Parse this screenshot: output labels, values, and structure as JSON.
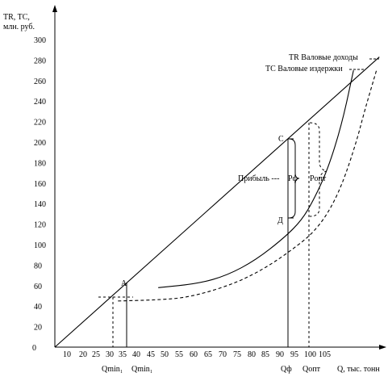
{
  "chart_data": {
    "type": "line",
    "title": "",
    "y_axis_label": [
      "TR, TC,",
      "млн. руб."
    ],
    "x_axis_label": "Q, тыс. тонн",
    "x_ticks": [
      "10",
      "20",
      "25",
      "30",
      "35",
      "40",
      "45",
      "50",
      "55",
      "60",
      "65",
      "70",
      "75",
      "80",
      "85",
      "90",
      "95",
      "100",
      "105"
    ],
    "y_ticks": [
      0,
      20,
      40,
      60,
      80,
      100,
      120,
      140,
      160,
      180,
      200,
      220,
      240,
      260,
      280,
      300
    ],
    "ylim": [
      0,
      300
    ],
    "xlim": [
      0,
      113
    ],
    "series": [
      {
        "name": "TR Валовые доходы",
        "style": "solid",
        "points": [
          [
            0,
            0
          ],
          [
            113,
            283
          ]
        ]
      },
      {
        "name": "TC Валовые издержки",
        "style": "solid",
        "points": [
          [
            36,
            58
          ],
          [
            50,
            62
          ],
          [
            60,
            70
          ],
          [
            70,
            85
          ],
          [
            80,
            107
          ],
          [
            86,
            124
          ],
          [
            90,
            143
          ],
          [
            95,
            173
          ],
          [
            100,
            218
          ],
          [
            104,
            270
          ]
        ]
      },
      {
        "name": "",
        "style": "dashed",
        "points": [
          [
            22,
            45
          ],
          [
            35,
            46
          ],
          [
            45,
            48
          ],
          [
            55,
            55
          ],
          [
            65,
            65
          ],
          [
            75,
            80
          ],
          [
            85,
            100
          ],
          [
            90,
            112
          ],
          [
            95,
            130
          ],
          [
            100,
            158
          ],
          [
            105,
            200
          ],
          [
            108,
            232
          ],
          [
            112,
            270
          ]
        ]
      }
    ],
    "point_labels": [
      {
        "label": "A",
        "x": 36,
        "y": 58
      },
      {
        "label": "C",
        "x": 82,
        "y": 200
      },
      {
        "label": "Д",
        "x": 82,
        "y": 120
      }
    ],
    "annotations": [
      "Прибыль ---",
      "Pф",
      "Pопт"
    ],
    "q_labels": [
      "Qmin₁",
      "Qmin₁",
      "Qф",
      "Qопт"
    ],
    "colors": {
      "line": "#000000",
      "background": "#ffffff"
    },
    "grid": false
  }
}
